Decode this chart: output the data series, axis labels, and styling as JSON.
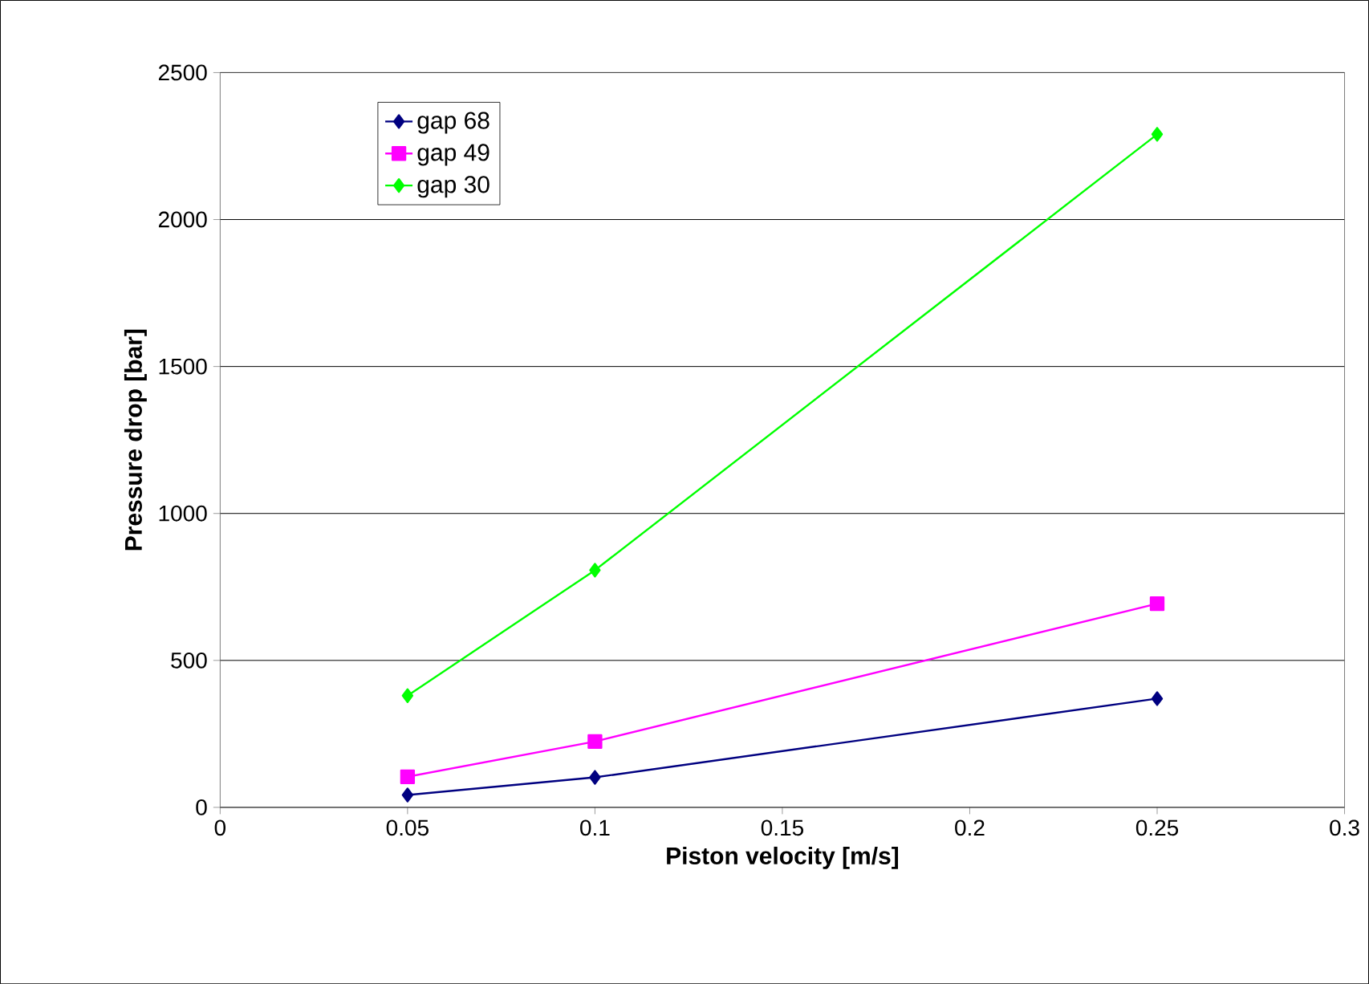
{
  "chart_data": {
    "type": "line",
    "xlabel": "Piston velocity [m/s]",
    "ylabel": "Pressure drop [bar]",
    "x": [
      0.05,
      0.1,
      0.25
    ],
    "series": [
      {
        "name": "gap 68",
        "color": "#000080",
        "values": [
          42,
          102,
          370
        ],
        "marker": "diamond"
      },
      {
        "name": "gap 49",
        "color": "#ff00ff",
        "values": [
          104,
          224,
          693
        ],
        "marker": "square"
      },
      {
        "name": "gap 30",
        "color": "#00ff00",
        "values": [
          380,
          807,
          2290
        ],
        "marker": "diamond"
      }
    ],
    "xlim": [
      0,
      0.3
    ],
    "xticks": [
      0,
      0.05,
      0.1,
      0.15,
      0.2,
      0.25,
      0.3
    ],
    "ylim": [
      0,
      2500
    ],
    "yticks": [
      0,
      500,
      1000,
      1500,
      2000,
      2500
    ],
    "grid": "y",
    "legend": "top left",
    "line_style": "solid"
  }
}
